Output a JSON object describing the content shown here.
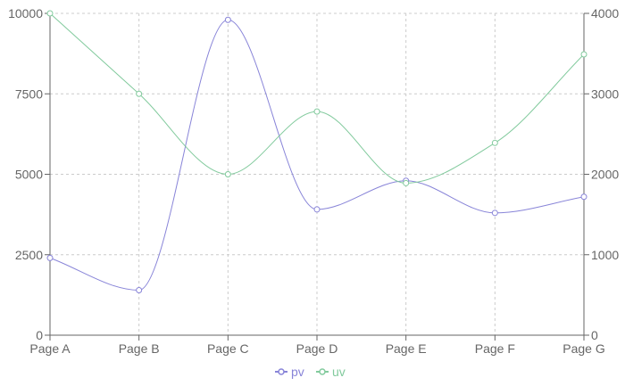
{
  "chart_data": {
    "type": "line",
    "x": [
      "Page A",
      "Page B",
      "Page C",
      "Page D",
      "Page E",
      "Page F",
      "Page G"
    ],
    "left_axis": {
      "ylim": [
        0,
        10000
      ],
      "ticks": [
        "0",
        "2500",
        "5000",
        "7500",
        "10000"
      ]
    },
    "right_axis": {
      "ylim": [
        0,
        4000
      ],
      "ticks": [
        "0",
        "1000",
        "2000",
        "3000",
        "4000"
      ]
    },
    "series": [
      {
        "name": "pv",
        "axis": "left",
        "color": "#8884d8",
        "values": [
          2400,
          1398,
          9800,
          3908,
          4800,
          3800,
          4300
        ]
      },
      {
        "name": "uv",
        "axis": "right",
        "color": "#82ca9d",
        "values": [
          4000,
          3000,
          2000,
          2780,
          1890,
          2390,
          3490
        ]
      }
    ],
    "grid": true,
    "legend": "bottom-center"
  }
}
